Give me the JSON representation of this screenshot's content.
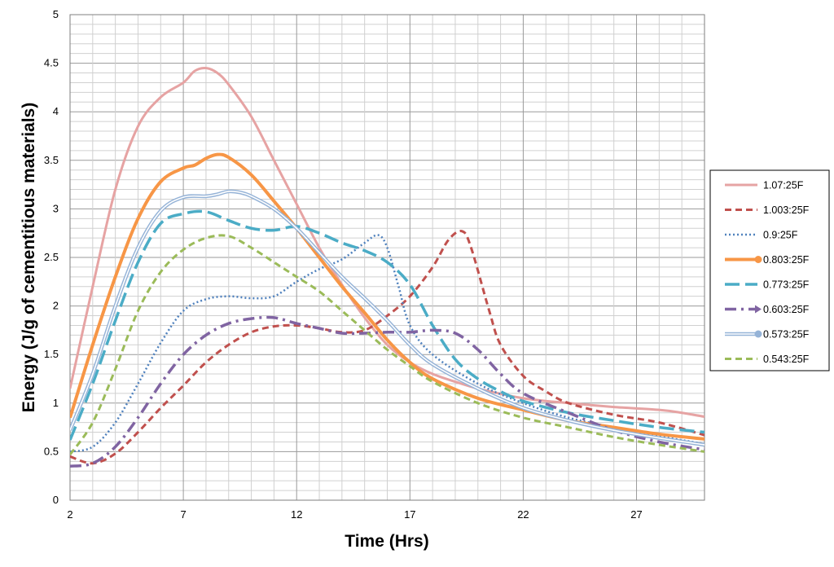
{
  "chart_data": {
    "type": "line",
    "title": "",
    "xlabel": "Time (Hrs)",
    "ylabel": "Energy (J/g of cementitious materials)",
    "xlim": [
      2,
      30
    ],
    "ylim": [
      0,
      5
    ],
    "x_ticks": [
      2,
      7,
      12,
      17,
      22,
      27
    ],
    "y_ticks": [
      0,
      0.5,
      1,
      1.5,
      2,
      2.5,
      3,
      3.5,
      4,
      4.5,
      5
    ],
    "x_tick_labels": [
      "2",
      "7",
      "12",
      "17",
      "22",
      "27"
    ],
    "y_tick_labels": [
      "0",
      "0.5",
      "1",
      "1.5",
      "2",
      "2.5",
      "3",
      "3.5",
      "4",
      "4.5",
      "5"
    ],
    "grid": true,
    "legend_position": "right",
    "series": [
      {
        "name": "1.07:25F",
        "color": "#E6A3A3",
        "style": "solid",
        "marker": "none",
        "x": [
          2,
          3,
          4,
          5,
          6,
          7,
          7.5,
          8,
          8.5,
          9,
          10,
          11,
          12,
          13,
          14,
          15,
          16,
          17,
          18,
          19,
          20,
          22,
          24,
          26,
          28,
          29,
          30
        ],
        "y": [
          1.15,
          2.2,
          3.2,
          3.85,
          4.15,
          4.3,
          4.42,
          4.45,
          4.4,
          4.28,
          3.95,
          3.5,
          3.05,
          2.6,
          2.22,
          1.88,
          1.6,
          1.42,
          1.3,
          1.22,
          1.15,
          1.05,
          1.0,
          0.96,
          0.93,
          0.9,
          0.86
        ]
      },
      {
        "name": "1.003:25F",
        "color": "#C0504D",
        "style": "dashed",
        "marker": "none",
        "x": [
          2,
          3,
          4,
          5,
          6,
          7,
          8,
          9,
          10,
          11,
          12,
          13,
          14,
          15,
          16,
          17,
          18,
          18.7,
          19.3,
          19.7,
          20.5,
          21,
          22,
          23,
          24,
          26,
          28,
          30
        ],
        "y": [
          0.45,
          0.38,
          0.48,
          0.7,
          0.95,
          1.18,
          1.42,
          1.6,
          1.73,
          1.79,
          1.8,
          1.77,
          1.73,
          1.75,
          1.9,
          2.1,
          2.4,
          2.68,
          2.77,
          2.6,
          1.95,
          1.6,
          1.28,
          1.12,
          1.0,
          0.88,
          0.8,
          0.67
        ]
      },
      {
        "name": "0.9:25F",
        "color": "#4F81BD",
        "style": "dotted",
        "marker": "none",
        "x": [
          2,
          3,
          4,
          5,
          6,
          7,
          8,
          9,
          10,
          11,
          12,
          13,
          14,
          15,
          15.6,
          16,
          16.5,
          17,
          18,
          20,
          22,
          24,
          26,
          28,
          30
        ],
        "y": [
          0.5,
          0.55,
          0.8,
          1.2,
          1.62,
          1.95,
          2.07,
          2.1,
          2.08,
          2.1,
          2.25,
          2.38,
          2.48,
          2.65,
          2.73,
          2.6,
          2.2,
          1.8,
          1.5,
          1.2,
          1.0,
          0.85,
          0.75,
          0.66,
          0.58
        ]
      },
      {
        "name": "0.803:25F",
        "color": "#F79646",
        "style": "solid-thick",
        "marker": "circle",
        "x": [
          2,
          3,
          4,
          5,
          6,
          7,
          7.5,
          8,
          8.5,
          9,
          10,
          11,
          12,
          13,
          14,
          15,
          16,
          17,
          18,
          20,
          22,
          24,
          26,
          28,
          30
        ],
        "y": [
          0.85,
          1.6,
          2.3,
          2.9,
          3.28,
          3.42,
          3.45,
          3.52,
          3.56,
          3.53,
          3.35,
          3.08,
          2.8,
          2.5,
          2.2,
          1.93,
          1.65,
          1.42,
          1.25,
          1.05,
          0.93,
          0.82,
          0.75,
          0.68,
          0.63
        ]
      },
      {
        "name": "0.773:25F",
        "color": "#4BACC6",
        "style": "long-dash",
        "marker": "none",
        "x": [
          2,
          3,
          4,
          5,
          6,
          7,
          8,
          9,
          10,
          11,
          12,
          13,
          14,
          15,
          16,
          17,
          18,
          19,
          20,
          21,
          22,
          24,
          26,
          28,
          30
        ],
        "y": [
          0.62,
          1.2,
          1.85,
          2.45,
          2.85,
          2.95,
          2.97,
          2.88,
          2.8,
          2.78,
          2.82,
          2.75,
          2.65,
          2.57,
          2.45,
          2.22,
          1.8,
          1.45,
          1.25,
          1.12,
          1.02,
          0.9,
          0.82,
          0.75,
          0.7
        ]
      },
      {
        "name": "0.603:25F",
        "color": "#8064A2",
        "style": "dash-dot",
        "marker": "triangle",
        "x": [
          2,
          3,
          4,
          5,
          6,
          7,
          8,
          9,
          10,
          11,
          12,
          13,
          14,
          15,
          16,
          17,
          18,
          19,
          20,
          21,
          22,
          24,
          26,
          28,
          30
        ],
        "y": [
          0.35,
          0.38,
          0.55,
          0.85,
          1.2,
          1.5,
          1.7,
          1.82,
          1.87,
          1.88,
          1.82,
          1.77,
          1.72,
          1.72,
          1.73,
          1.73,
          1.75,
          1.72,
          1.55,
          1.3,
          1.1,
          0.9,
          0.72,
          0.6,
          0.52
        ]
      },
      {
        "name": "0.573:25F",
        "color": "#95B3D7",
        "style": "double",
        "marker": "circle",
        "x": [
          2,
          3,
          4,
          5,
          6,
          7,
          8,
          8.5,
          9,
          9.5,
          10,
          11,
          12,
          13,
          14,
          15,
          16,
          17,
          18,
          20,
          22,
          24,
          26,
          28,
          30
        ],
        "y": [
          0.72,
          1.3,
          2.0,
          2.6,
          2.98,
          3.12,
          3.13,
          3.15,
          3.18,
          3.17,
          3.13,
          3.0,
          2.8,
          2.55,
          2.3,
          2.08,
          1.85,
          1.6,
          1.4,
          1.15,
          0.95,
          0.82,
          0.72,
          0.64,
          0.57
        ]
      },
      {
        "name": "0.543:25F",
        "color": "#9BBB59",
        "style": "dashed",
        "marker": "none",
        "x": [
          2,
          3,
          4,
          5,
          6,
          7,
          8,
          9,
          10,
          11,
          12,
          13,
          14,
          15,
          16,
          17,
          18,
          20,
          22,
          24,
          26,
          28,
          30
        ],
        "y": [
          0.47,
          0.8,
          1.35,
          1.95,
          2.35,
          2.58,
          2.7,
          2.72,
          2.6,
          2.45,
          2.3,
          2.15,
          1.95,
          1.75,
          1.55,
          1.38,
          1.22,
          1.0,
          0.85,
          0.75,
          0.65,
          0.57,
          0.5
        ]
      }
    ]
  }
}
